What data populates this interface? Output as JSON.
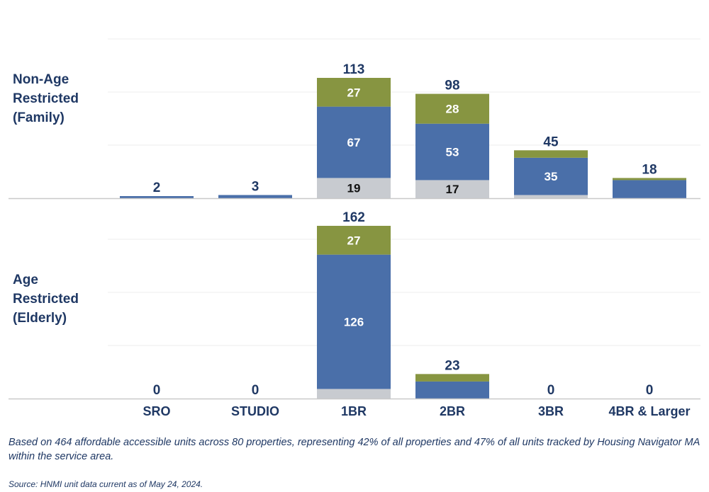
{
  "chart_data": {
    "type": "bar",
    "stacked": true,
    "categories": [
      "SRO",
      "STUDIO",
      "1BR",
      "2BR",
      "3BR",
      "4BR & Larger"
    ],
    "colors": {
      "bottom": "#c8cbd0",
      "middle": "#4a6fa9",
      "top": "#879541",
      "text_dark": "#1f3864"
    },
    "panels": [
      {
        "label": "Non-Age\nRestricted\n(Family)",
        "ylim": [
          0,
          120
        ],
        "totals": [
          2,
          3,
          113,
          98,
          45,
          18
        ],
        "segments": [
          [
            0,
            2,
            0
          ],
          [
            0,
            3,
            0
          ],
          [
            19,
            67,
            27
          ],
          [
            17,
            53,
            28
          ],
          [
            3,
            35,
            7
          ],
          [
            0,
            17,
            1
          ]
        ],
        "segment_labels": [
          [
            "",
            "",
            ""
          ],
          [
            "",
            "",
            ""
          ],
          [
            "19",
            "67",
            "27"
          ],
          [
            "17",
            "53",
            "28"
          ],
          [
            "",
            "35",
            ""
          ],
          [
            "",
            "",
            ""
          ]
        ]
      },
      {
        "label": "Age\nRestricted\n(Elderly)",
        "ylim": [
          0,
          165
        ],
        "totals": [
          0,
          0,
          162,
          23,
          0,
          0
        ],
        "segments": [
          [
            0,
            0,
            0
          ],
          [
            0,
            0,
            0
          ],
          [
            9,
            126,
            27
          ],
          [
            0,
            16,
            7
          ],
          [
            0,
            0,
            0
          ],
          [
            0,
            0,
            0
          ]
        ],
        "segment_labels": [
          [
            "",
            "",
            ""
          ],
          [
            "",
            "",
            ""
          ],
          [
            "",
            "126",
            "27"
          ],
          [
            "",
            "",
            ""
          ],
          [
            "",
            "",
            ""
          ],
          [
            "",
            "",
            ""
          ]
        ]
      }
    ]
  },
  "footnote": "Based on 464 affordable accessible units across 80 properties, representing 42% of all properties and 47% of all units tracked by Housing Navigator MA within the service area.",
  "source": "Source: HNMI unit data current as of May 24, 2024."
}
